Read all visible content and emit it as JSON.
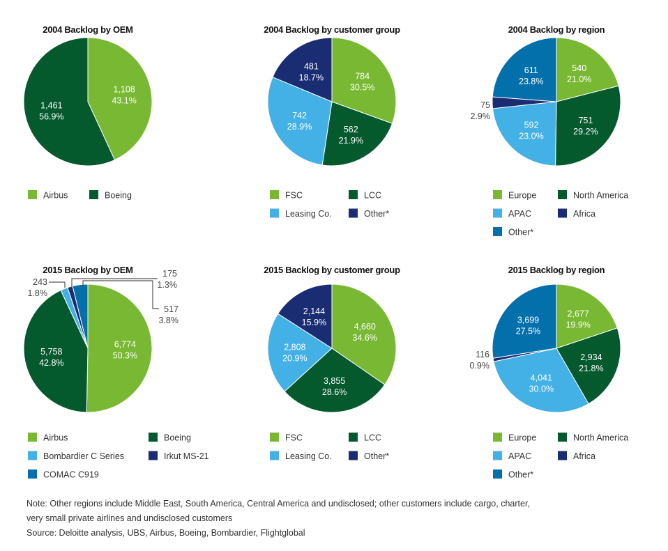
{
  "colors": {
    "light_green": "#78b833",
    "dark_green": "#04592d",
    "light_blue": "#43b0e6",
    "navy": "#1a2d72",
    "blue": "#0470ab"
  },
  "chart_data": [
    {
      "type": "pie",
      "title": "2004 Backlog by OEM",
      "slices": [
        {
          "name": "Airbus",
          "value": 1108,
          "value_label": "1,108",
          "pct": "43.1%",
          "color": "#78b833"
        },
        {
          "name": "Boeing",
          "value": 1461,
          "value_label": "1,461",
          "pct": "56.9%",
          "color": "#04592d"
        }
      ]
    },
    {
      "type": "pie",
      "title": "2004 Backlog by customer group",
      "slices": [
        {
          "name": "FSC",
          "value": 784,
          "value_label": "784",
          "pct": "30.5%",
          "color": "#78b833"
        },
        {
          "name": "LCC",
          "value": 562,
          "value_label": "562",
          "pct": "21.9%",
          "color": "#04592d"
        },
        {
          "name": "Leasing Co.",
          "value": 742,
          "value_label": "742",
          "pct": "28.9%",
          "color": "#43b0e6"
        },
        {
          "name": "Other*",
          "value": 481,
          "value_label": "481",
          "pct": "18.7%",
          "color": "#1a2d72"
        }
      ]
    },
    {
      "type": "pie",
      "title": "2004 Backlog by region",
      "slices": [
        {
          "name": "Europe",
          "value": 540,
          "value_label": "540",
          "pct": "21.0%",
          "color": "#78b833"
        },
        {
          "name": "North America",
          "value": 751,
          "value_label": "751",
          "pct": "29.2%",
          "color": "#04592d"
        },
        {
          "name": "APAC",
          "value": 592,
          "value_label": "592",
          "pct": "23.0%",
          "color": "#43b0e6"
        },
        {
          "name": "Africa",
          "value": 75,
          "value_label": "75",
          "pct": "2.9%",
          "color": "#1a2d72"
        },
        {
          "name": "Other*",
          "value": 611,
          "value_label": "611",
          "pct": "23.8%",
          "color": "#0470ab"
        }
      ]
    },
    {
      "type": "pie",
      "title": "2015 Backlog by OEM",
      "slices": [
        {
          "name": "Airbus",
          "value": 6774,
          "value_label": "6,774",
          "pct": "50.3%",
          "color": "#78b833"
        },
        {
          "name": "Boeing",
          "value": 5758,
          "value_label": "5,758",
          "pct": "42.8%",
          "color": "#04592d"
        },
        {
          "name": "Bombardier C Series",
          "value": 243,
          "value_label": "243",
          "pct": "1.8%",
          "color": "#43b0e6"
        },
        {
          "name": "Irkut MS-21",
          "value": 175,
          "value_label": "175",
          "pct": "1.3%",
          "color": "#1a2d72"
        },
        {
          "name": "COMAC C919",
          "value": 517,
          "value_label": "517",
          "pct": "3.8%",
          "color": "#0470ab"
        }
      ]
    },
    {
      "type": "pie",
      "title": "2015 Backlog by customer group",
      "slices": [
        {
          "name": "FSC",
          "value": 4660,
          "value_label": "4,660",
          "pct": "34.6%",
          "color": "#78b833"
        },
        {
          "name": "LCC",
          "value": 3855,
          "value_label": "3,855",
          "pct": "28.6%",
          "color": "#04592d"
        },
        {
          "name": "Leasing Co.",
          "value": 2808,
          "value_label": "2,808",
          "pct": "20.9%",
          "color": "#43b0e6"
        },
        {
          "name": "Other*",
          "value": 2144,
          "value_label": "2,144",
          "pct": "15.9%",
          "color": "#1a2d72"
        }
      ]
    },
    {
      "type": "pie",
      "title": "2015 Backlog by region",
      "slices": [
        {
          "name": "Europe",
          "value": 2677,
          "value_label": "2,677",
          "pct": "19.9%",
          "color": "#78b833"
        },
        {
          "name": "North America",
          "value": 2934,
          "value_label": "2,934",
          "pct": "21.8%",
          "color": "#04592d"
        },
        {
          "name": "APAC",
          "value": 4041,
          "value_label": "4,041",
          "pct": "30.0%",
          "color": "#43b0e6"
        },
        {
          "name": "Africa",
          "value": 116,
          "value_label": "116",
          "pct": "0.9%",
          "color": "#1a2d72"
        },
        {
          "name": "Other*",
          "value": 3699,
          "value_label": "3,699",
          "pct": "27.5%",
          "color": "#0470ab"
        }
      ]
    }
  ],
  "note": {
    "line1": "Note: Other regions include Middle East, South America, Central America and undisclosed; other customers include cargo, charter,",
    "line2": "very small private airlines and undisclosed customers",
    "source": "Source: Deloitte analysis, UBS, Airbus, Boeing, Bombardier, Flightglobal"
  }
}
